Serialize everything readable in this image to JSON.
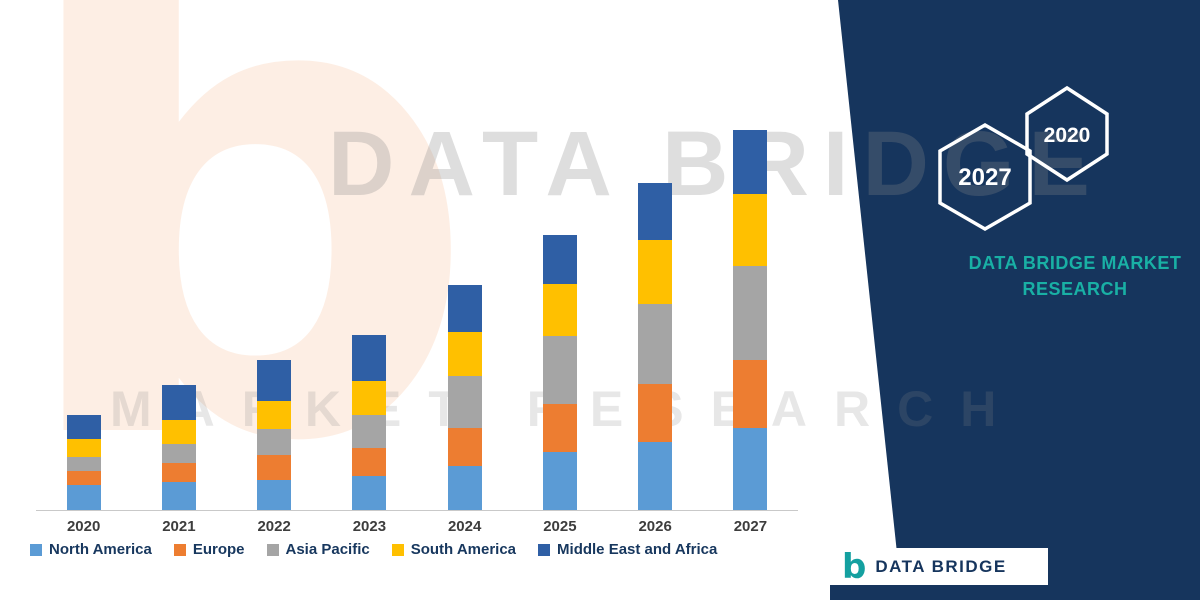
{
  "watermark": {
    "logo_glyph": "b",
    "line1": "DATA BRIDGE",
    "line2": "MARKET RESEARCH"
  },
  "panel": {
    "bg_color": "#16355D",
    "accent_color": "#19B0A5",
    "hexagons": [
      {
        "label": "2027"
      },
      {
        "label": "2020"
      }
    ],
    "brand_line1": "DATA BRIDGE MARKET",
    "brand_line2": "RESEARCH"
  },
  "footer_logo": {
    "glyph": "b",
    "text": "DATA BRIDGE"
  },
  "chart_data": {
    "type": "bar",
    "stacked": true,
    "title": "",
    "xlabel": "",
    "ylabel": "",
    "ylim": [
      0,
      400
    ],
    "gridlines": false,
    "legend_position": "bottom",
    "categories": [
      "2020",
      "2021",
      "2022",
      "2023",
      "2024",
      "2025",
      "2026",
      "2027"
    ],
    "series": [
      {
        "name": "North America",
        "color": "#5B9BD5",
        "values": [
          25,
          28,
          30,
          34,
          44,
          58,
          68,
          82
        ]
      },
      {
        "name": "Europe",
        "color": "#ED7D31",
        "values": [
          14,
          19,
          25,
          28,
          38,
          48,
          58,
          68
        ]
      },
      {
        "name": "Asia Pacific",
        "color": "#A5A5A5",
        "values": [
          14,
          19,
          26,
          33,
          52,
          68,
          80,
          94
        ]
      },
      {
        "name": "South America",
        "color": "#FFC000",
        "values": [
          18,
          24,
          28,
          34,
          44,
          52,
          64,
          72
        ]
      },
      {
        "name": "Middle East and Africa",
        "color": "#2F5FA5",
        "values": [
          24,
          35,
          41,
          46,
          47,
          49,
          57,
          64
        ]
      }
    ]
  }
}
